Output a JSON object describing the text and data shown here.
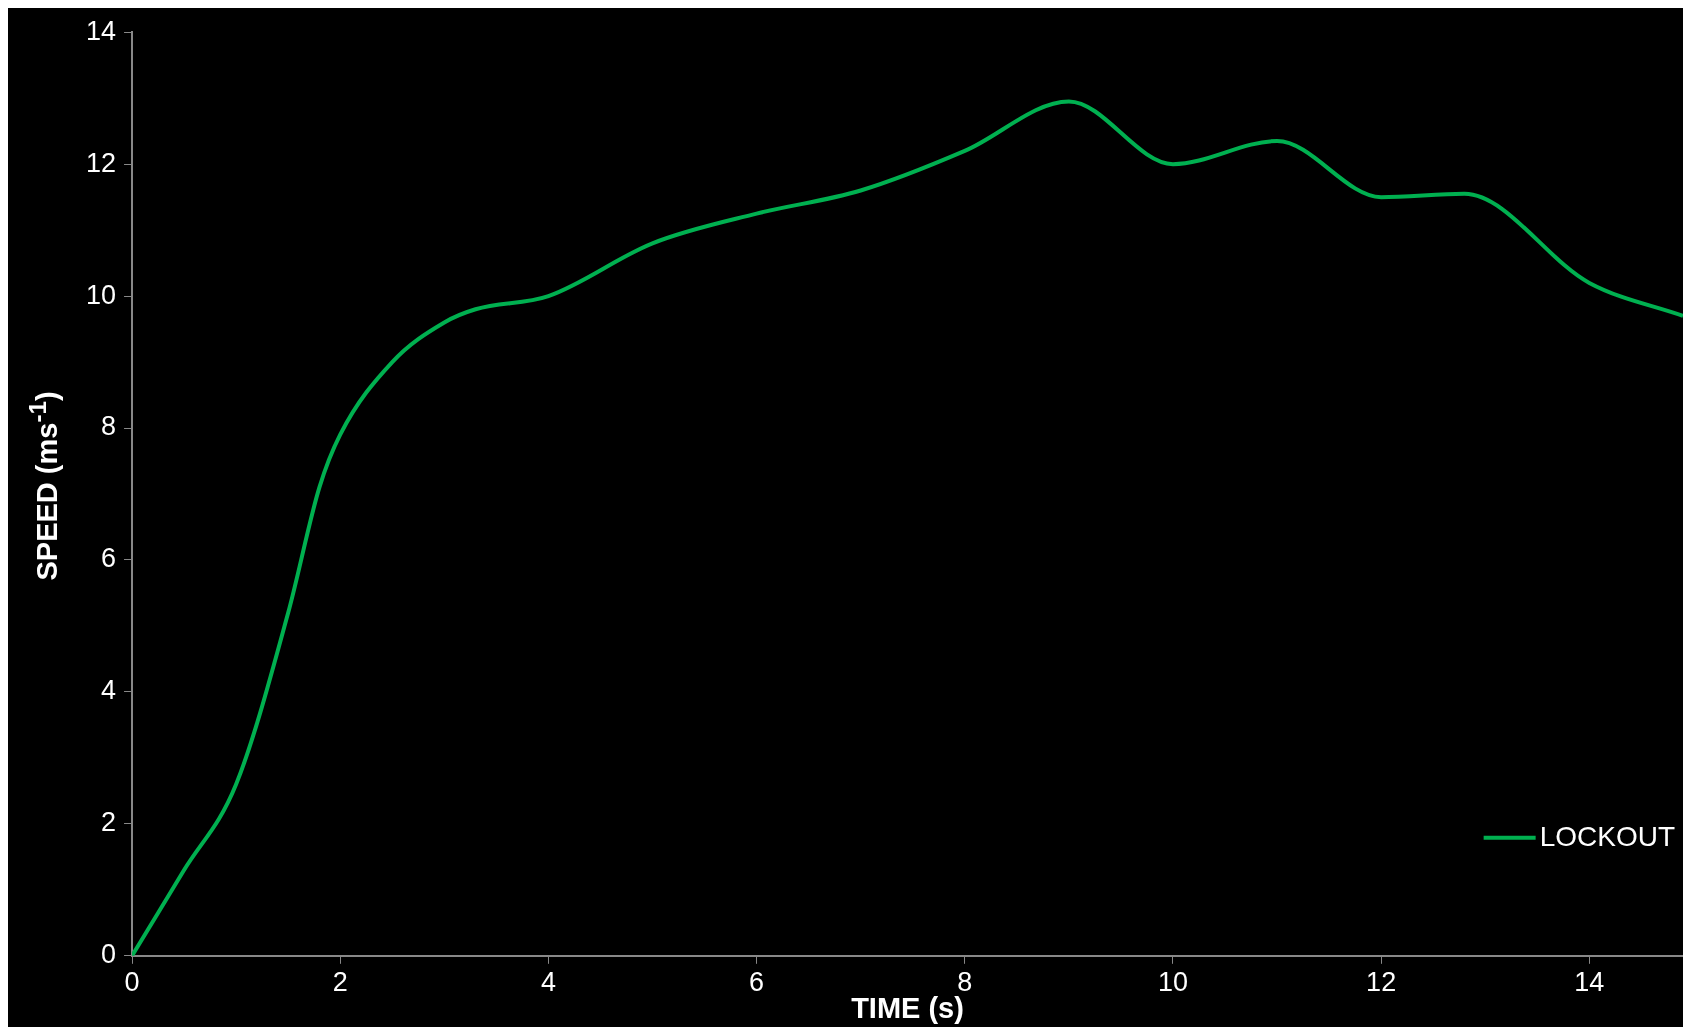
{
  "chart_data": {
    "type": "line",
    "xlabel": "TIME (s)",
    "ylabel": "SPEED (ms$^{-1}$)",
    "xlim": [
      0,
      14.9
    ],
    "xticks": [
      0,
      2,
      4,
      6,
      8,
      10,
      12,
      14
    ],
    "ylim": [
      0,
      14
    ],
    "yticks": [
      0,
      2,
      4,
      6,
      8,
      10,
      12,
      14
    ],
    "grid": false,
    "legend": "bottom right",
    "marker": "none",
    "line_style": "solid",
    "series": [
      {
        "name": "LOCKOUT",
        "color": "#00b050",
        "x": [
          0,
          0.5,
          1,
          1.5,
          1.8,
          2,
          2.5,
          3,
          3.3,
          4,
          5,
          6,
          7,
          8,
          9,
          10,
          11,
          12,
          12.8,
          14,
          14.9
        ],
        "values": [
          0,
          1.3,
          2.6,
          5.2,
          7.1,
          7.9,
          9.0,
          9.6,
          9.8,
          10.0,
          10.8,
          11.25,
          11.6,
          12.2,
          12.95,
          12.0,
          12.35,
          11.5,
          11.55,
          10.2,
          9.7
        ]
      }
    ]
  }
}
